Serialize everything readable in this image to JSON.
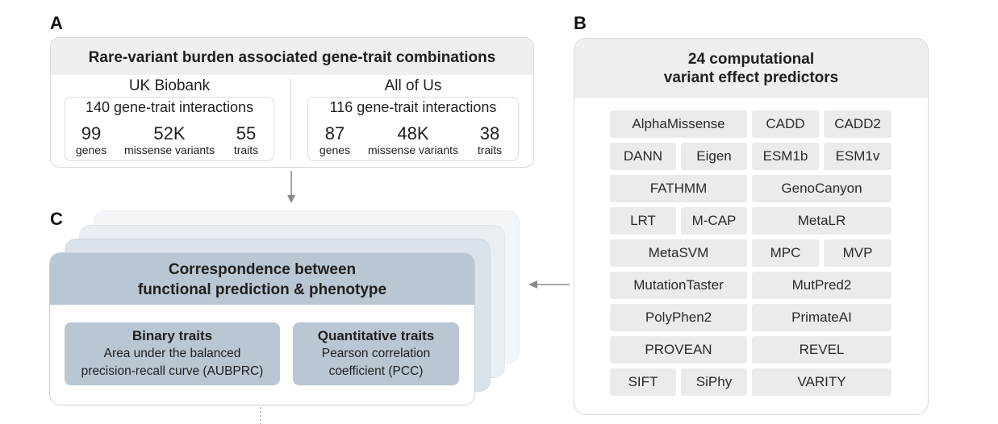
{
  "panel_a": {
    "letter": "A",
    "header": "Rare-variant burden associated gene-trait combinations",
    "cohorts": [
      {
        "name": "UK Biobank",
        "interactions": "140 gene-trait interactions",
        "stats": [
          {
            "value": "99",
            "label": "genes"
          },
          {
            "value": "52K",
            "label": "missense variants"
          },
          {
            "value": "55",
            "label": "traits"
          }
        ]
      },
      {
        "name": "All of Us",
        "interactions": "116 gene-trait interactions",
        "stats": [
          {
            "value": "87",
            "label": "genes"
          },
          {
            "value": "48K",
            "label": "missense variants"
          },
          {
            "value": "38",
            "label": "traits"
          }
        ]
      }
    ]
  },
  "panel_b": {
    "letter": "B",
    "header_line1": "24 computational",
    "header_line2": "variant effect predictors",
    "predictors": [
      "AlphaMissense",
      "CADD",
      "CADD2",
      "DANN",
      "Eigen",
      "ESM1b",
      "ESM1v",
      "FATHMM",
      "GenoCanyon",
      "LRT",
      "M-CAP",
      "MetaLR",
      "MetaSVM",
      "MPC",
      "MVP",
      "MutationTaster",
      "MutPred2",
      "PolyPhen2",
      "PrimateAI",
      "PROVEAN",
      "REVEL",
      "SIFT",
      "SiPhy",
      "VARITY"
    ]
  },
  "panel_c": {
    "letter": "C",
    "header_line1": "Correspondence between",
    "header_line2": "functional prediction & phenotype",
    "binary": {
      "title": "Binary traits",
      "line1": "Area under the balanced",
      "line2": "precision-recall curve (AUBPRC)"
    },
    "quantitative": {
      "title": "Quantitative traits",
      "line1": "Pearson correlation",
      "line2": "coefficient (PCC)"
    }
  },
  "colors": {
    "header_gray": "#efefef",
    "chip_gray": "#ebebeb",
    "blue_gray": "#b9c6d3",
    "arrow": "#8a8a8a"
  }
}
